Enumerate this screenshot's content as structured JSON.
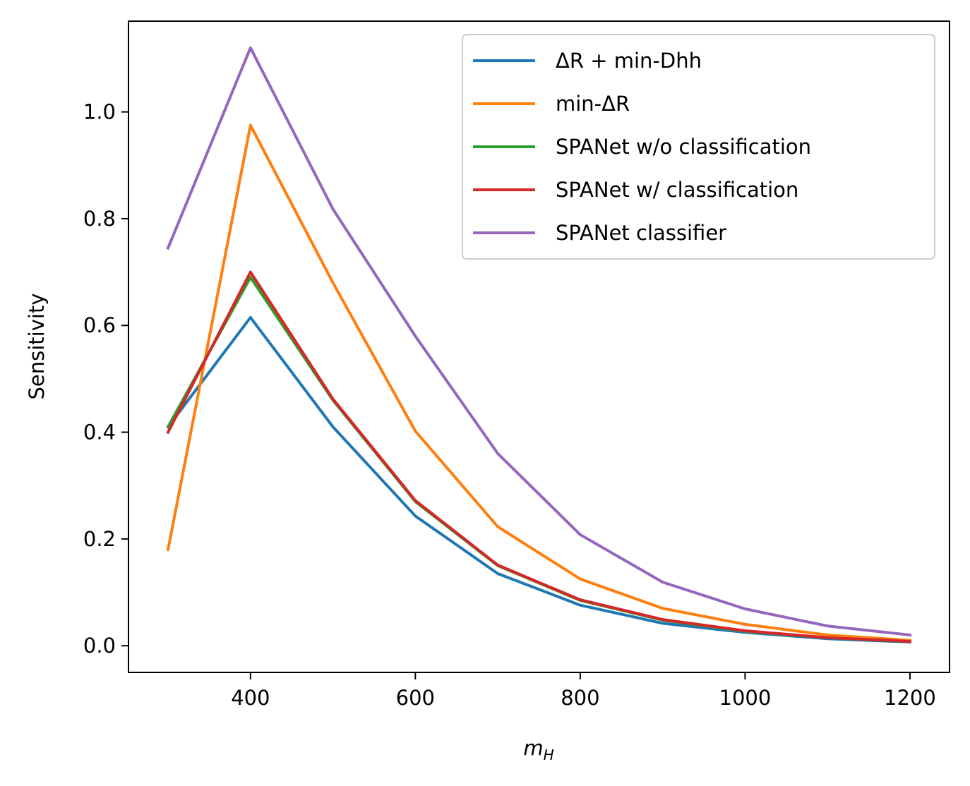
{
  "chart_data": {
    "type": "line",
    "xlabel_base": "m",
    "xlabel_sub": "H",
    "ylabel": "Sensitivity",
    "xlim": [
      252,
      1248
    ],
    "ylim": [
      -0.05,
      1.17
    ],
    "xticks": [
      400,
      600,
      800,
      1000,
      1200
    ],
    "xtick_labels": [
      "400",
      "600",
      "800",
      "1000",
      "1200"
    ],
    "yticks": [
      0.0,
      0.2,
      0.4,
      0.6,
      0.8,
      1.0
    ],
    "ytick_labels": [
      "0.0",
      "0.2",
      "0.4",
      "0.6",
      "0.8",
      "1.0"
    ],
    "grid": false,
    "legend_position": "top-right",
    "x": [
      300,
      400,
      500,
      600,
      700,
      800,
      900,
      1000,
      1100,
      1200
    ],
    "series": [
      {
        "name": "ΔR + min-Dhh",
        "color": "#1f77b4",
        "values": [
          0.41,
          0.615,
          0.41,
          0.243,
          0.135,
          0.076,
          0.042,
          0.025,
          0.013,
          0.007
        ]
      },
      {
        "name": "min-ΔR",
        "color": "#ff7f0e",
        "values": [
          0.18,
          0.975,
          0.68,
          0.402,
          0.223,
          0.125,
          0.07,
          0.04,
          0.02,
          0.01
        ]
      },
      {
        "name": "SPANet w/o classification",
        "color": "#2ca02c",
        "values": [
          0.41,
          0.69,
          0.46,
          0.27,
          0.15,
          0.085,
          0.048,
          0.027,
          0.015,
          0.008
        ]
      },
      {
        "name": "SPANet w/ classification",
        "color": "#d62728",
        "values": [
          0.4,
          0.7,
          0.462,
          0.272,
          0.151,
          0.086,
          0.049,
          0.028,
          0.015,
          0.008
        ]
      },
      {
        "name": "SPANet classifier",
        "color": "#9467bd",
        "values": [
          0.745,
          1.12,
          0.818,
          0.58,
          0.36,
          0.208,
          0.119,
          0.069,
          0.037,
          0.02
        ]
      }
    ]
  }
}
